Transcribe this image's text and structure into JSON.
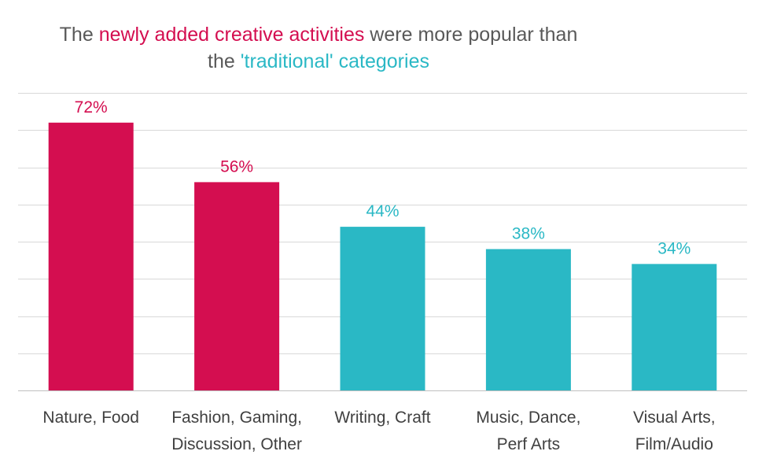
{
  "title": {
    "line1": {
      "part1": "The ",
      "part2": "newly added creative activities",
      "part3": " were more popular than"
    },
    "line2": {
      "part1": "the ",
      "part2": "'traditional' categories"
    }
  },
  "colors": {
    "new": "#D40E50",
    "traditional": "#2AB8C5",
    "title_text": "#595959",
    "grid": "#D9D9D9",
    "axis": "#BFBFBF",
    "category_text": "#404040"
  },
  "chart_data": {
    "type": "bar",
    "title": "The newly added creative activities were more popular than the 'traditional' categories",
    "categories": [
      [
        "Nature, Food"
      ],
      [
        "Fashion, Gaming,",
        "Discussion, Other"
      ],
      [
        "Writing, Craft"
      ],
      [
        "Music, Dance,",
        "Perf Arts"
      ],
      [
        "Visual Arts,",
        "Film/Audio"
      ]
    ],
    "values": [
      72,
      56,
      44,
      38,
      34
    ],
    "value_labels": [
      "72%",
      "56%",
      "44%",
      "38%",
      "34%"
    ],
    "groups": [
      "new",
      "new",
      "traditional",
      "traditional",
      "traditional"
    ],
    "ylim": [
      0,
      80
    ],
    "gridlines": true,
    "legend": "none",
    "xlabel": "",
    "ylabel": ""
  }
}
